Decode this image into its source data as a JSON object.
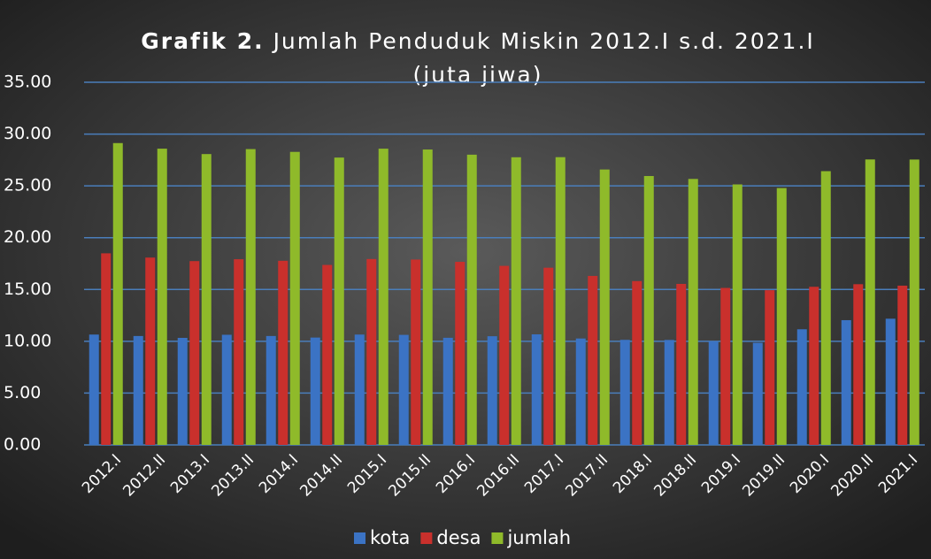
{
  "chart_data": {
    "type": "bar",
    "title_prefix": "Grafik 2.",
    "title": "Jumlah Penduduk Miskin 2012.I s.d.  2021.I",
    "subtitle": "(juta jiwa)",
    "categories": [
      "2012.I",
      "2012.II",
      "2013.I",
      "2013.II",
      "2014.I",
      "2014.II",
      "2015.I",
      "2015.II",
      "2016.I",
      "2016.II",
      "2017.I",
      "2017.II",
      "2018.I",
      "2018.II",
      "2019.I",
      "2019.II",
      "2020.I",
      "2020.II",
      "2021.I"
    ],
    "series": [
      {
        "name": "kota",
        "color": "#3b73c4",
        "values": [
          10.65,
          10.51,
          10.33,
          10.63,
          10.51,
          10.36,
          10.65,
          10.62,
          10.34,
          10.49,
          10.67,
          10.27,
          10.14,
          10.13,
          9.99,
          9.86,
          11.16,
          12.04,
          12.18
        ]
      },
      {
        "name": "desa",
        "color": "#c9302c",
        "values": [
          18.49,
          18.08,
          17.74,
          17.92,
          17.77,
          17.37,
          17.94,
          17.89,
          17.67,
          17.28,
          17.1,
          16.31,
          15.81,
          15.54,
          15.15,
          14.93,
          15.26,
          15.51,
          15.37
        ]
      },
      {
        "name": "jumlah",
        "color": "#8fba2a",
        "values": [
          29.13,
          28.59,
          28.07,
          28.55,
          28.28,
          27.73,
          28.59,
          28.51,
          28.01,
          27.76,
          27.77,
          26.58,
          25.95,
          25.67,
          25.14,
          24.79,
          26.42,
          27.55,
          27.54
        ]
      }
    ],
    "ylim": [
      0,
      35
    ],
    "yticks": [
      {
        "value": 0,
        "label": "0.00"
      },
      {
        "value": 5,
        "label": "5.00"
      },
      {
        "value": 10,
        "label": "10.00"
      },
      {
        "value": 15,
        "label": "15.00"
      },
      {
        "value": 20,
        "label": "20.00"
      },
      {
        "value": 25,
        "label": "25.00"
      },
      {
        "value": 30,
        "label": "30.00"
      },
      {
        "value": 35,
        "label": "35.00"
      }
    ],
    "grid": true,
    "legend": "bottom"
  }
}
